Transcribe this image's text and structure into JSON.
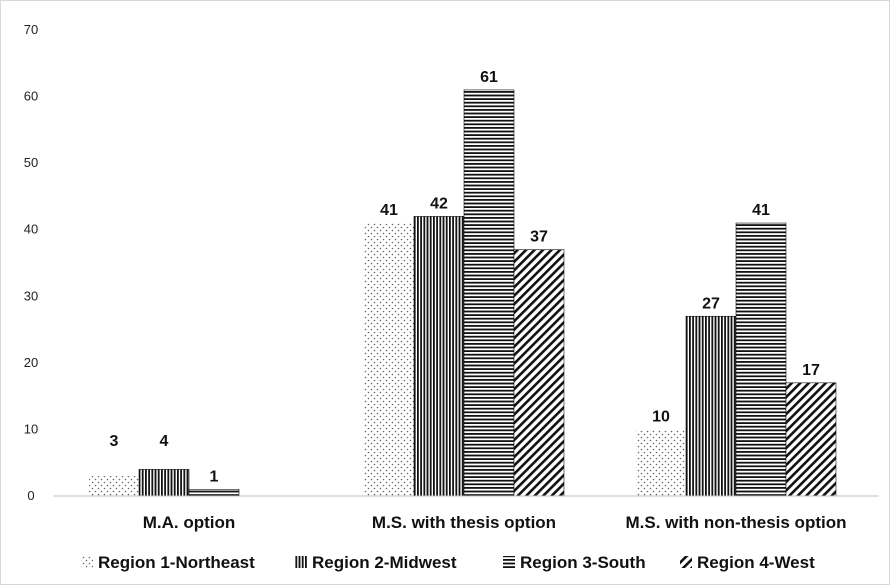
{
  "chart_data": {
    "type": "bar",
    "title": "",
    "xlabel": "",
    "ylabel": "",
    "ylim": [
      0,
      70
    ],
    "yticks": [
      0,
      10,
      20,
      30,
      40,
      50,
      60,
      70
    ],
    "grid": false,
    "legend_position": "bottom",
    "categories": [
      "M.A. option",
      "M.S. with thesis option",
      "M.S. with non-thesis option"
    ],
    "series": [
      {
        "name": "Region 1-Northeast",
        "values": [
          3,
          41,
          10
        ],
        "pattern": "dots",
        "color": "#555555"
      },
      {
        "name": "Region 2-Midwest",
        "values": [
          4,
          42,
          27
        ],
        "pattern": "vertical-lines",
        "color": "#111111"
      },
      {
        "name": "Region 3-South",
        "values": [
          1,
          61,
          41
        ],
        "pattern": "horizontal-lines",
        "color": "#111111"
      },
      {
        "name": "Region 4-West",
        "values": [
          0,
          37,
          17
        ],
        "pattern": "diagonal-lines",
        "color": "#111111"
      }
    ],
    "data_labels": [
      [
        "3",
        "41",
        "10"
      ],
      [
        "4",
        "42",
        "27"
      ],
      [
        "1",
        "61",
        "41"
      ],
      [
        "",
        "37",
        "17"
      ]
    ]
  }
}
